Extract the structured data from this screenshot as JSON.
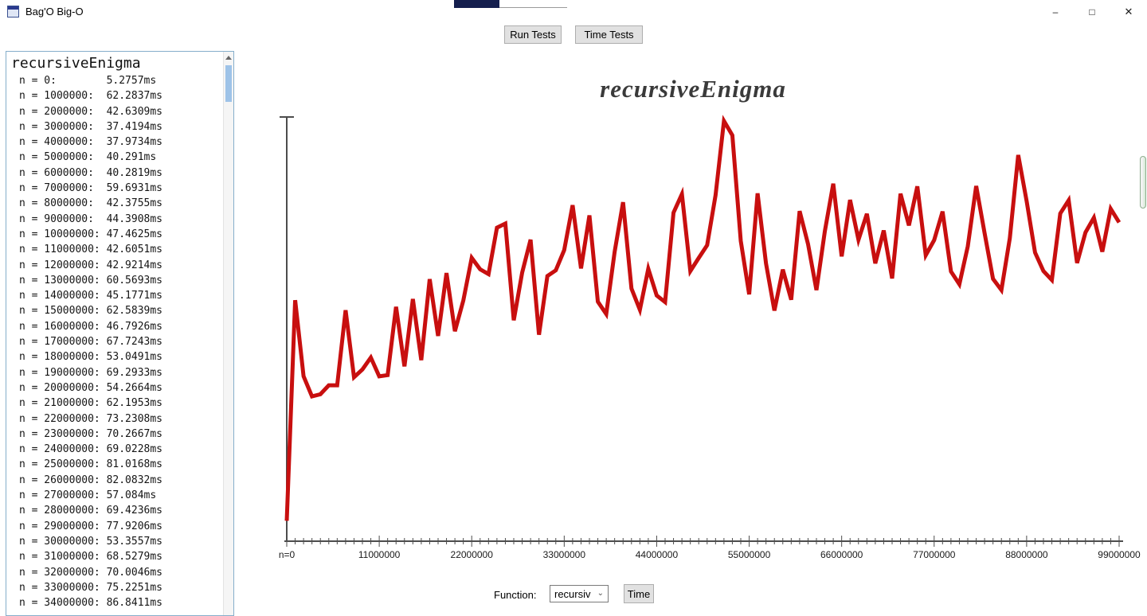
{
  "window": {
    "title": "Bag'O Big-O",
    "icons": {
      "minimize": "–",
      "maximize": "□",
      "close": "✕",
      "chevron_down": "⌄"
    }
  },
  "toolbar": {
    "run_label": "Run Tests",
    "time_label": "Time Tests"
  },
  "left_panel": {
    "header": "recursiveEnigma",
    "lines": [
      "n = 0:        5.2757ms",
      "n = 1000000:  62.2837ms",
      "n = 2000000:  42.6309ms",
      "n = 3000000:  37.4194ms",
      "n = 4000000:  37.9734ms",
      "n = 5000000:  40.291ms",
      "n = 6000000:  40.2819ms",
      "n = 7000000:  59.6931ms",
      "n = 8000000:  42.3755ms",
      "n = 9000000:  44.3908ms",
      "n = 10000000: 47.4625ms",
      "n = 11000000: 42.6051ms",
      "n = 12000000: 42.9214ms",
      "n = 13000000: 60.5693ms",
      "n = 14000000: 45.1771ms",
      "n = 15000000: 62.5839ms",
      "n = 16000000: 46.7926ms",
      "n = 17000000: 67.7243ms",
      "n = 18000000: 53.0491ms",
      "n = 19000000: 69.2933ms",
      "n = 20000000: 54.2664ms",
      "n = 21000000: 62.1953ms",
      "n = 22000000: 73.2308ms",
      "n = 23000000: 70.2667ms",
      "n = 24000000: 69.0228ms",
      "n = 25000000: 81.0168ms",
      "n = 26000000: 82.0832ms",
      "n = 27000000: 57.084ms",
      "n = 28000000: 69.4236ms",
      "n = 29000000: 77.9206ms",
      "n = 30000000: 53.3557ms",
      "n = 31000000: 68.5279ms",
      "n = 32000000: 70.0046ms",
      "n = 33000000: 75.2251ms",
      "n = 34000000: 86.8411ms"
    ]
  },
  "chart_data": {
    "type": "line",
    "title": "recursiveEnigma",
    "xlabel": "",
    "ylabel": "",
    "x_min": 0,
    "x_max": 99000000,
    "x_step": 1000000,
    "x_tick_labels": [
      "n=0",
      "11000000",
      "22000000",
      "33000000",
      "44000000",
      "55000000",
      "66000000",
      "77000000",
      "88000000",
      "99000000"
    ],
    "y_unit": "ms",
    "line_color": "#c80f0f",
    "axis_color": "#4d4d4d",
    "y": [
      5.2757,
      62.2837,
      42.6309,
      37.4194,
      37.9734,
      40.291,
      40.2819,
      59.6931,
      42.3755,
      44.3908,
      47.4625,
      42.6051,
      42.9214,
      60.5693,
      45.1771,
      62.5839,
      46.7926,
      67.7243,
      53.0491,
      69.2933,
      54.2664,
      62.1953,
      73.2308,
      70.2667,
      69.0228,
      81.0168,
      82.0832,
      57.084,
      69.4236,
      77.9206,
      53.3557,
      68.5279,
      70.0046,
      75.2251,
      86.8411,
      70.5,
      84.2,
      61.9,
      58.7,
      74.8,
      87.6,
      65.3,
      59.8,
      70.4,
      63.5,
      61.8,
      84.9,
      89.7,
      69.8,
      73.2,
      76.5,
      89.4,
      108.6,
      104.9,
      77.6,
      63.8,
      89.9,
      71.8,
      59.6,
      70.2,
      62.4,
      85.3,
      76.8,
      64.9,
      80.1,
      92.4,
      73.6,
      88.2,
      77.9,
      84.6,
      71.8,
      80.3,
      67.9,
      89.8,
      81.6,
      91.7,
      73.9,
      77.8,
      85.2,
      69.7,
      66.4,
      76.2,
      91.8,
      79.6,
      67.8,
      64.9,
      78.3,
      99.8,
      87.9,
      74.6,
      69.8,
      67.5,
      84.7,
      88.1,
      71.9,
      79.8,
      83.6,
      74.8,
      85.9,
      82.4
    ]
  },
  "bottom_bar": {
    "function_label": "Function:",
    "function_value": "recursiv",
    "time_label": "Time"
  }
}
